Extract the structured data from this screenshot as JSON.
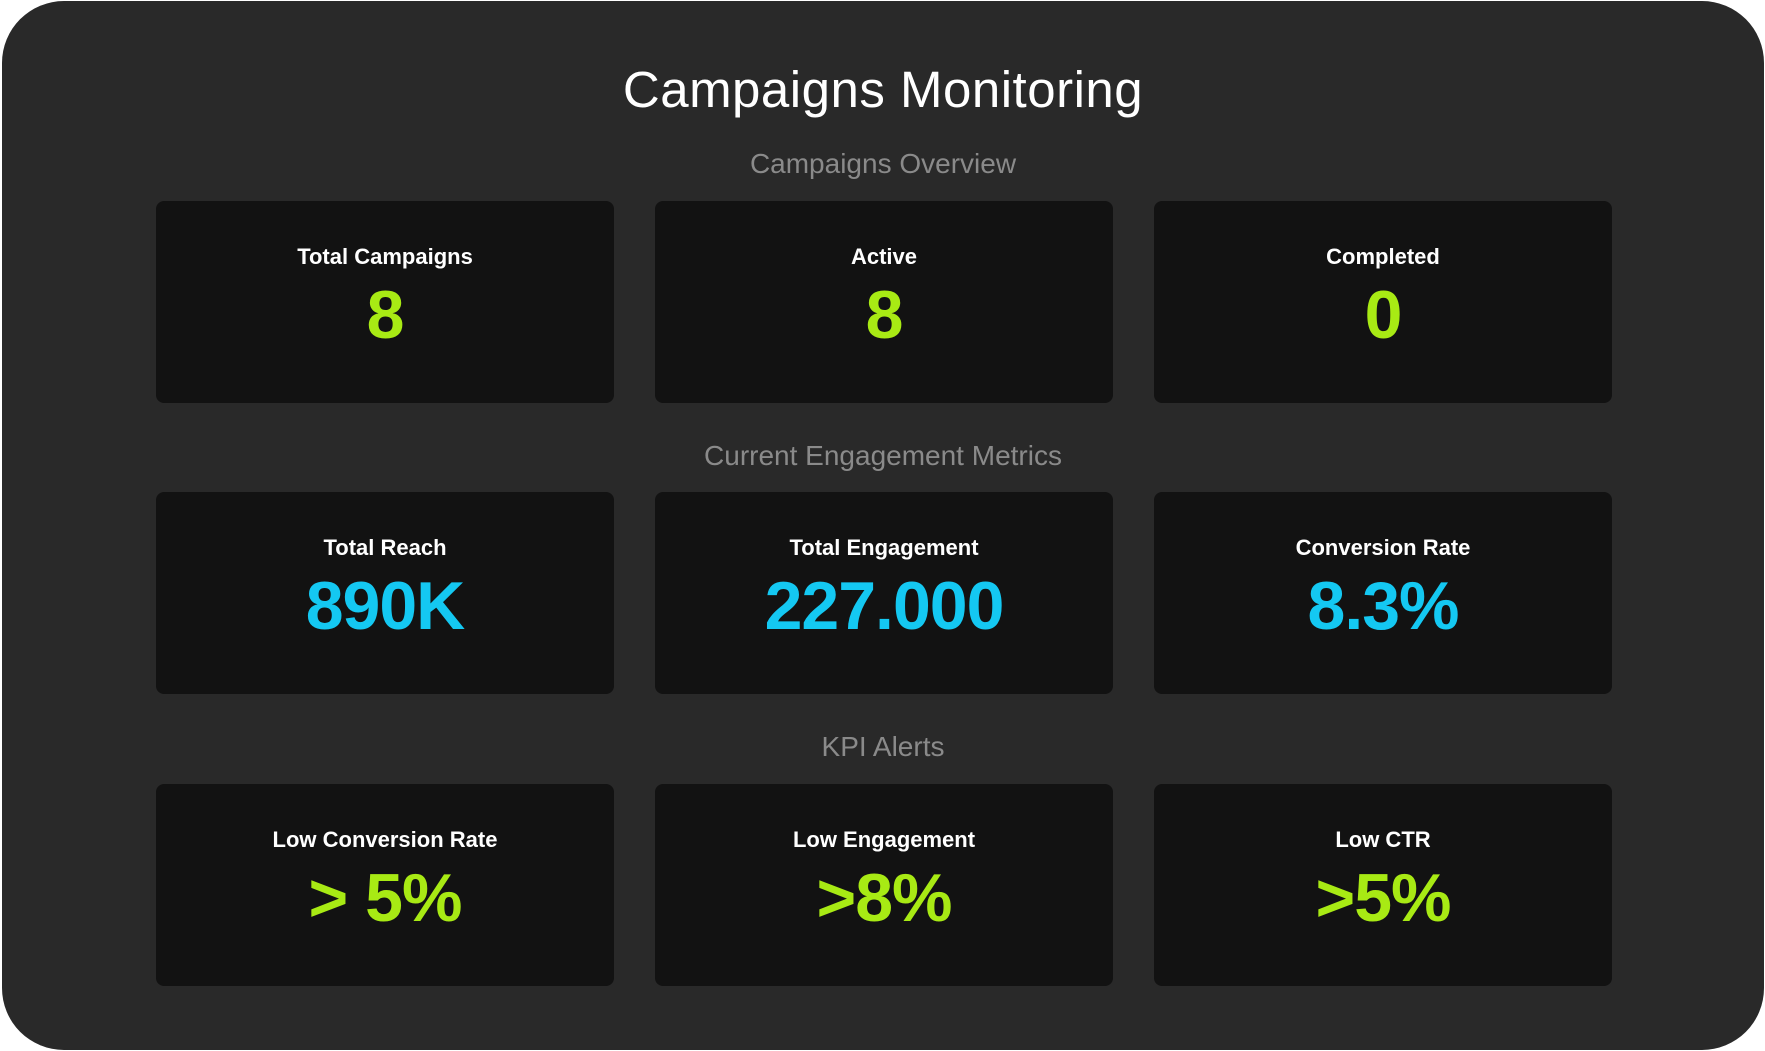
{
  "header": {
    "title": "Campaigns Monitoring"
  },
  "colors": {
    "background": "#292929",
    "card": "#121212",
    "green_accent": "#a8ea14",
    "cyan_accent": "#14c8f2",
    "section_title": "#8a8a8a"
  },
  "sections": [
    {
      "title": "Campaigns Overview",
      "cards": [
        {
          "label": "Total Campaigns",
          "value": "8"
        },
        {
          "label": "Active",
          "value": "8"
        },
        {
          "label": "Completed",
          "value": "0"
        }
      ]
    },
    {
      "title": "Current Engagement Metrics",
      "cards": [
        {
          "label": "Total Reach",
          "value": "890K"
        },
        {
          "label": "Total Engagement",
          "value": "227.000"
        },
        {
          "label": "Conversion Rate",
          "value": "8.3%"
        }
      ]
    },
    {
      "title": "KPI Alerts",
      "cards": [
        {
          "label": "Low Conversion Rate",
          "value": "> 5%"
        },
        {
          "label": "Low Engagement",
          "value": ">8%"
        },
        {
          "label": "Low CTR",
          "value": ">5%"
        }
      ]
    }
  ]
}
